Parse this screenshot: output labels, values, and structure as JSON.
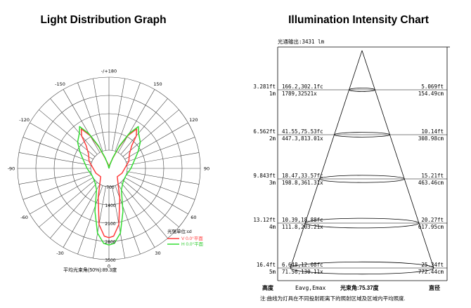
{
  "chart_data": [
    {
      "type": "polar",
      "title": "Light Distribution Graph",
      "angle_labels": [
        {
          "angle": 0,
          "text": "-/+180"
        },
        {
          "angle": -30,
          "text": "-150"
        },
        {
          "angle": 30,
          "text": "150"
        },
        {
          "angle": -60,
          "text": "-120"
        },
        {
          "angle": 60,
          "text": "120"
        },
        {
          "angle": -90,
          "text": "-90"
        },
        {
          "angle": 90,
          "text": "90"
        },
        {
          "angle": -120,
          "text": "-60"
        },
        {
          "angle": 120,
          "text": "60"
        },
        {
          "angle": -150,
          "text": "-30"
        },
        {
          "angle": 150,
          "text": "30"
        },
        {
          "angle": 180,
          "text": "0"
        }
      ],
      "radial_ticks": [
        {
          "r": 0.25,
          "text": "700"
        },
        {
          "r": 0.5,
          "text": "1400"
        },
        {
          "r": 0.75,
          "text": "2100"
        },
        {
          "r": 1.0,
          "text": "2800"
        },
        {
          "r": 1.25,
          "text": "3500"
        }
      ],
      "units_label": "光强单位:cd",
      "series": [
        {
          "name": "V 0.0°平面",
          "color": "#ff3b3b",
          "points": [
            [
              0,
              0
            ],
            [
              10,
              0.05
            ],
            [
              20,
              0.14
            ],
            [
              25,
              0.32
            ],
            [
              30,
              0.52
            ],
            [
              35,
              0.66
            ],
            [
              40,
              0.58
            ],
            [
              45,
              0.44
            ],
            [
              55,
              0.34
            ],
            [
              70,
              0.29
            ],
            [
              110,
              0.19
            ],
            [
              135,
              0.16
            ],
            [
              160,
              0.43
            ],
            [
              170,
              0.78
            ],
            [
              176,
              0.93
            ],
            [
              180,
              0.95
            ],
            [
              184,
              0.93
            ],
            [
              190,
              0.78
            ],
            [
              200,
              0.43
            ],
            [
              225,
              0.16
            ],
            [
              250,
              0.19
            ],
            [
              290,
              0.29
            ],
            [
              305,
              0.34
            ],
            [
              315,
              0.44
            ],
            [
              320,
              0.58
            ],
            [
              325,
              0.66
            ],
            [
              330,
              0.52
            ],
            [
              335,
              0.32
            ],
            [
              340,
              0.14
            ],
            [
              350,
              0.05
            ],
            [
              360,
              0
            ]
          ]
        },
        {
          "name": "H 0.0°平面",
          "color": "#33dd33",
          "points": [
            [
              0,
              0
            ],
            [
              15,
              0.05
            ],
            [
              20,
              0.16
            ],
            [
              25,
              0.34
            ],
            [
              30,
              0.55
            ],
            [
              35,
              0.7
            ],
            [
              40,
              0.63
            ],
            [
              50,
              0.56
            ],
            [
              60,
              0.46
            ],
            [
              70,
              0.38
            ],
            [
              90,
              0.3
            ],
            [
              115,
              0.25
            ],
            [
              135,
              0.27
            ],
            [
              150,
              0.34
            ],
            [
              162,
              0.62
            ],
            [
              170,
              0.9
            ],
            [
              176,
              1.03
            ],
            [
              180,
              1.05
            ],
            [
              184,
              1.03
            ],
            [
              190,
              0.9
            ],
            [
              198,
              0.62
            ],
            [
              210,
              0.34
            ],
            [
              225,
              0.27
            ],
            [
              245,
              0.25
            ],
            [
              270,
              0.3
            ],
            [
              290,
              0.38
            ],
            [
              300,
              0.46
            ],
            [
              310,
              0.56
            ],
            [
              320,
              0.63
            ],
            [
              325,
              0.7
            ],
            [
              330,
              0.55
            ],
            [
              335,
              0.34
            ],
            [
              340,
              0.16
            ],
            [
              345,
              0.05
            ],
            [
              360,
              0
            ]
          ]
        }
      ],
      "footer": "平均光束角(50%):89.3度"
    },
    {
      "type": "table",
      "title": "Illumination Intensity Chart",
      "header": "光通输出:3431 lm",
      "rows": [
        {
          "ft": "3.281ft",
          "m": "1m",
          "fc": "166.2,302.1fc",
          "lx": "1789,32521x",
          "dft": "5.069ft",
          "dcm": "154.49cm"
        },
        {
          "ft": "6.562ft",
          "m": "2m",
          "fc": "41.55,75.53fc",
          "lx": "447.3,813.01x",
          "dft": "10.14ft",
          "dcm": "308.98cm"
        },
        {
          "ft": "9.843ft",
          "m": "3m",
          "fc": "18.47,33.57fc",
          "lx": "198.8,361.31x",
          "dft": "15.21ft",
          "dcm": "463.46cm"
        },
        {
          "ft": "13.12ft",
          "m": "4m",
          "fc": "10.39,18.88fc",
          "lx": "111.8,203.21x",
          "dft": "20.27ft",
          "dcm": "617.95cm"
        },
        {
          "ft": "16.4ft",
          "m": "5m",
          "fc": "6.648,12.08fc",
          "lx": "71.56,130.11x",
          "dft": "25.34ft",
          "dcm": "772.44cm"
        }
      ],
      "footer_labels": {
        "height": "高度",
        "eavg": "Eavg,Emax",
        "beam": "光束角:75.37度",
        "diameter": "直径"
      },
      "note": "注:曲线为灯具在不同投射距离下的照射区域及区域内平均照度."
    }
  ]
}
